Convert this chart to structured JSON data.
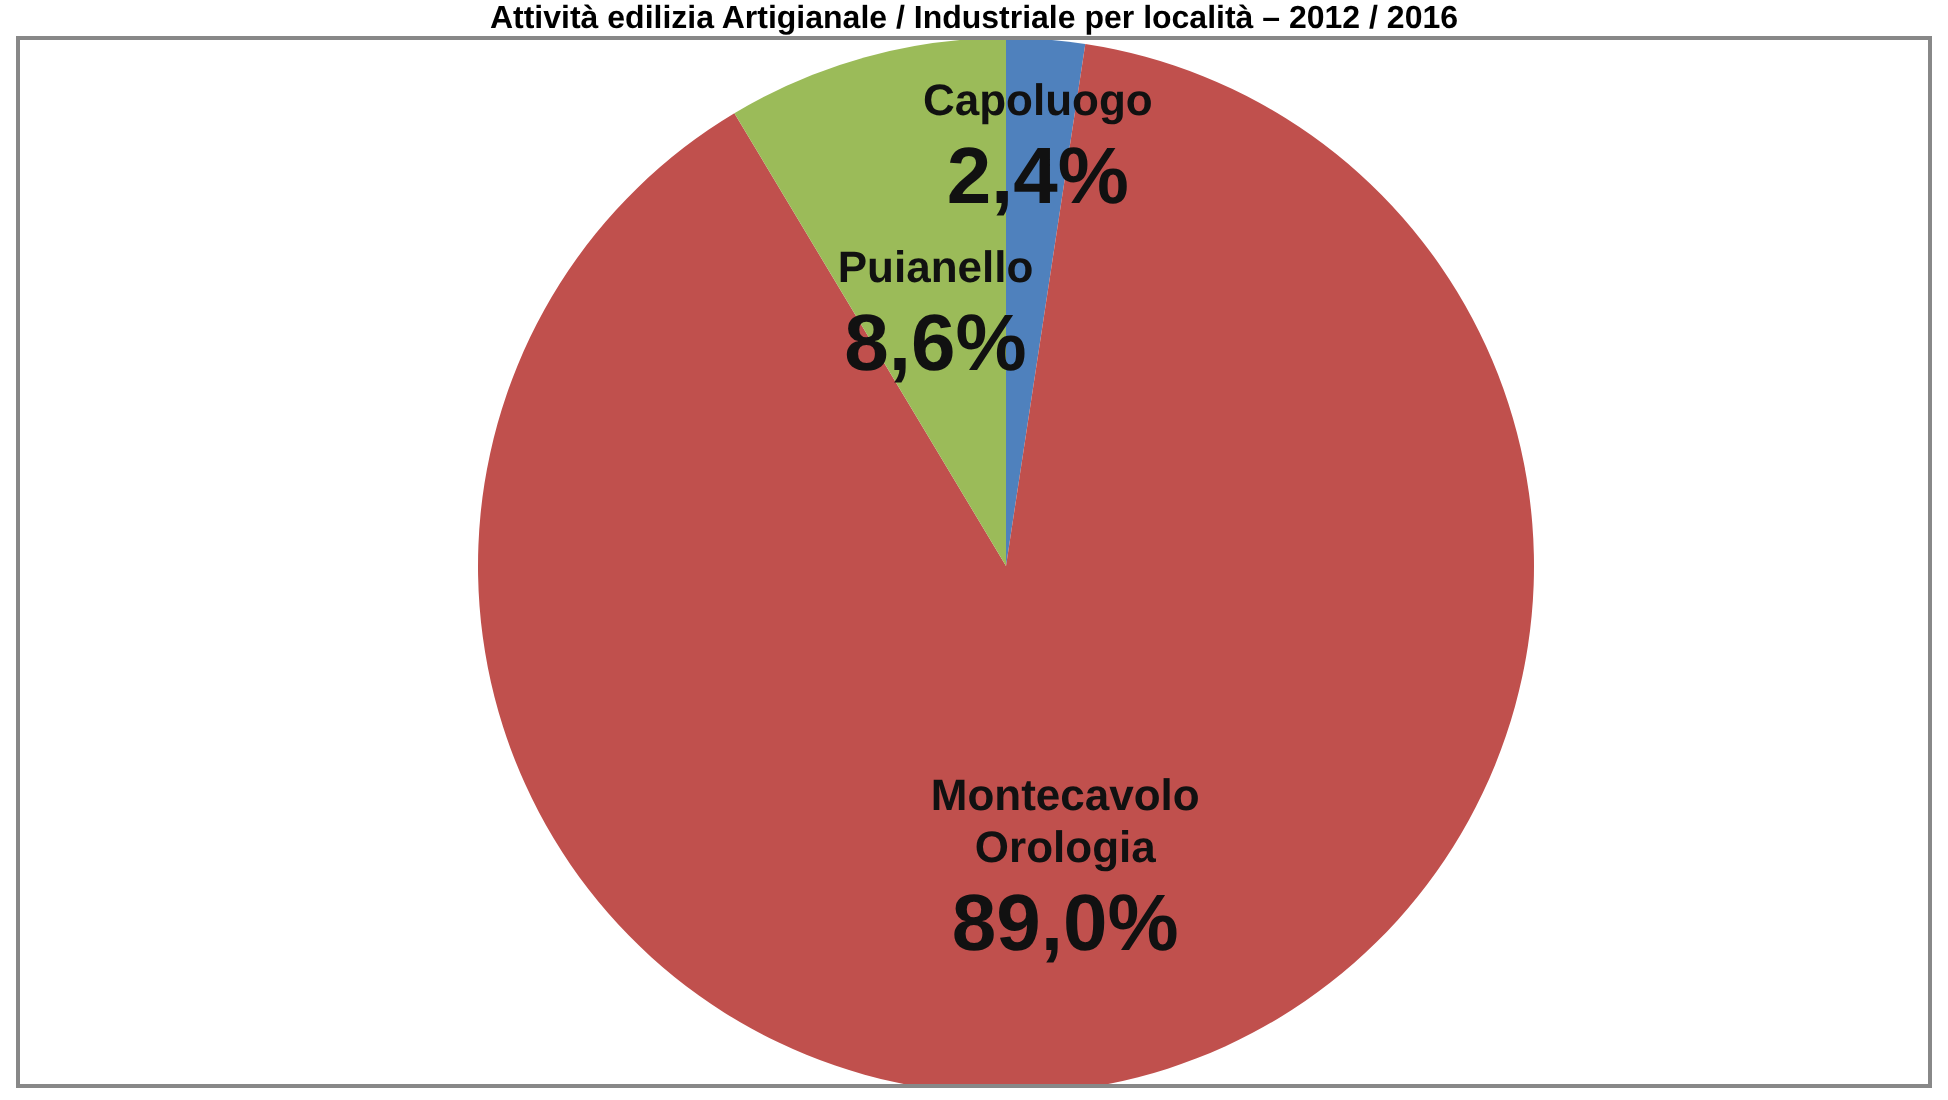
{
  "chart_data": {
    "type": "pie",
    "title": "Attività edilizia Artigianale / Industriale per località – 2012 / 2016",
    "categories": [
      "Capoluogo",
      "Montecavolo\nOrologia",
      "Puianello"
    ],
    "values": [
      2.4,
      89.0,
      8.6
    ],
    "colors": [
      "#4f81bd",
      "#c0504d",
      "#9bbb59"
    ],
    "value_labels": [
      "2,4%",
      "89,0%",
      "8,6%"
    ],
    "legend": false
  }
}
